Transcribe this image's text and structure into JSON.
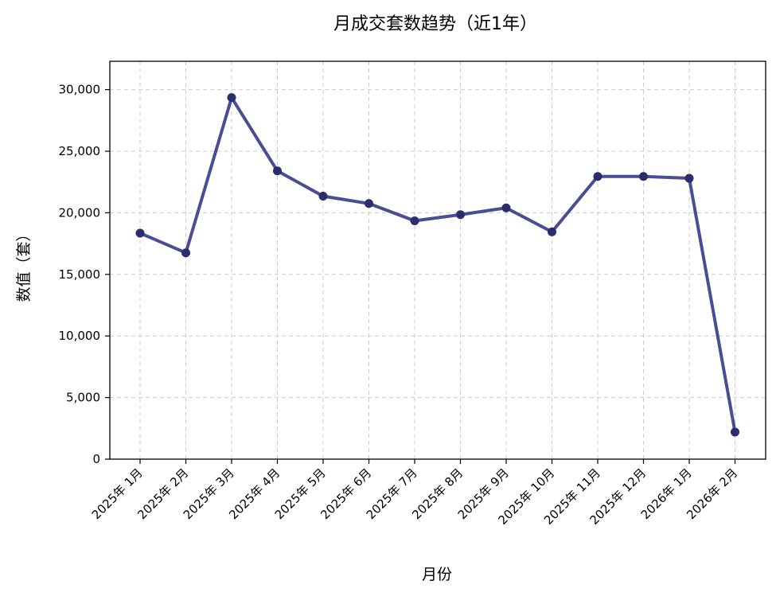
{
  "chart_data": {
    "type": "line",
    "title": "月成交套数趋势（近1年）",
    "xlabel": "月份",
    "ylabel": "数值（套）",
    "categories": [
      "2025年 1月",
      "2025年 2月",
      "2025年 3月",
      "2025年 4月",
      "2025年 5月",
      "2025年 6月",
      "2025年 7月",
      "2025年 8月",
      "2025年 9月",
      "2025年 10月",
      "2025年 11月",
      "2025年 12月",
      "2026年 1月",
      "2026年 2月"
    ],
    "series": [
      {
        "values": [
          18350,
          16750,
          29350,
          23400,
          21350,
          20750,
          19350,
          19850,
          20400,
          18450,
          22950,
          22950,
          22800,
          2200
        ],
        "color": "#3a3f8b"
      }
    ],
    "ylim": [
      0,
      32300
    ],
    "yticks": [
      0,
      5000,
      10000,
      15000,
      20000,
      25000,
      30000
    ],
    "ytick_labels": [
      "0",
      "5,000",
      "10,000",
      "15,000",
      "20,000",
      "25,000",
      "30,000"
    ],
    "grid": true,
    "legend": "none"
  }
}
